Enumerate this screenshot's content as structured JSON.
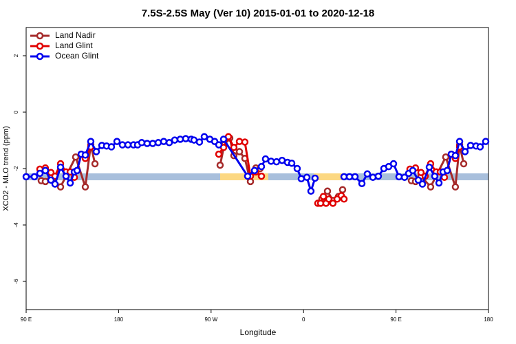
{
  "chart_data": {
    "type": "line",
    "title": "7.5S-2.5S May (Ver 10)   2015-01-01 to 2020-12-18",
    "xlabel": "Longitude",
    "ylabel": "XCO2 - MLO trend (ppm)",
    "xlim": [
      90,
      540
    ],
    "ylim": [
      -7,
      3
    ],
    "xticks": [
      {
        "value": 90,
        "label": "90 E"
      },
      180,
      {
        "value": 270,
        "label": "90 W"
      },
      {
        "value": 360,
        "label": "0"
      },
      {
        "value": 450,
        "label": "90 E"
      },
      {
        "value": 540,
        "label": "180"
      }
    ],
    "yticks": [
      -6,
      -4,
      -2,
      0,
      2
    ],
    "legend": "upper left",
    "series": [
      {
        "name": "Land Nadir",
        "color": "#a52a2a",
        "x": [
          104.7,
          108.7,
          114.1,
          123.5,
          138.2,
          147.6,
          152.9,
          157.0,
          200,
          278.8,
          282.8,
          288.2,
          292.2,
          297.6,
          302.9,
          308.3,
          313.6,
          317.7,
          350,
          377.9,
          383.3,
          388.6,
          394.0,
          398.0,
          450,
          465.0,
          469.0,
          474.3,
          483.7,
          498.4,
          507.8,
          511.9,
          515.9
        ],
        "values": [
          -2.43,
          -2.46,
          -2.27,
          -2.65,
          -1.59,
          -2.65,
          -1.16,
          -1.83,
          null,
          -1.88,
          -1.16,
          -0.92,
          -1.54,
          -1.4,
          -1.64,
          -2.46,
          -1.98,
          -2.0,
          null,
          -3.08,
          -2.8,
          -3.13,
          -2.99,
          -2.75,
          null,
          -2.43,
          -2.46,
          -2.27,
          -2.65,
          -1.59,
          -2.65,
          -1.16,
          -1.83
        ]
      },
      {
        "name": "Land Glint",
        "color": "#e00000",
        "x": [
          103.4,
          108.7,
          114.1,
          118.1,
          123.5,
          128.8,
          132.9,
          136.9,
          139.6,
          143.6,
          147.6,
          152.9,
          200,
          277.5,
          282.2,
          286.9,
          292.2,
          297.6,
          302.9,
          308.3,
          313.6,
          319.0,
          350,
          373.9,
          376.6,
          379.3,
          381.9,
          384.6,
          388.6,
          392.7,
          396.7,
          399.4,
          450,
          463.6,
          469.0,
          474.3,
          478.4,
          483.7,
          489.1,
          493.1,
          497.1,
          499.8,
          503.8,
          507.8,
          511.9
        ],
        "values": [
          -2.02,
          -1.98,
          -2.14,
          -2.27,
          -1.83,
          -2.12,
          -2.12,
          -2.31,
          -2.07,
          -1.49,
          -1.64,
          -1.23,
          null,
          -1.49,
          -1.25,
          -0.87,
          -1.25,
          -1.04,
          -1.06,
          -2.27,
          -2.12,
          -2.27,
          null,
          -3.23,
          -3.23,
          -2.99,
          -3.23,
          -3.08,
          -3.23,
          -3.08,
          -2.96,
          -3.08,
          null,
          -2.02,
          -1.98,
          -2.14,
          -2.27,
          -1.83,
          -2.12,
          -2.12,
          -2.31,
          -2.07,
          -1.49,
          -1.64,
          -1.23
        ]
      },
      {
        "name": "Ocean Glint",
        "color": "#0000ee",
        "x": [
          90,
          98.0,
          103.4,
          108.7,
          114.1,
          118.1,
          123.5,
          128.8,
          132.9,
          136.9,
          139.6,
          143.6,
          147.6,
          152.9,
          158.3,
          163.7,
          168.3,
          173.0,
          178.4,
          183.7,
          189.1,
          194.5,
          198.5,
          202.5,
          207.8,
          213.2,
          218.6,
          223.9,
          229.3,
          234.6,
          240.0,
          245.3,
          250.7,
          253.4,
          258.7,
          263.4,
          268.8,
          273.5,
          277.5,
          282.2,
          305.6,
          312.3,
          319.0,
          323.0,
          328.4,
          333.7,
          339.1,
          344.4,
          348.5,
          353.8,
          357.8,
          363.2,
          367.2,
          371.2,
          385,
          399.4,
          404.7,
          410.1,
          416.8,
          422.1,
          427.5,
          432.8,
          438.2,
          442.9,
          447.6,
          452.9,
          458.3,
          462.3,
          466.3,
          471.7,
          475.7,
          482.4,
          487.7,
          491.8,
          495.8,
          499.8,
          503.8,
          507.8,
          511.9,
          517.2,
          522.6,
          527.9,
          531.9,
          537.3
        ],
        "values": [
          -2.29,
          -2.29,
          -2.17,
          -2.07,
          -2.41,
          -2.55,
          -1.95,
          -2.27,
          -2.51,
          -2.12,
          -2.07,
          -1.49,
          -1.52,
          -1.04,
          -1.4,
          -1.18,
          -1.2,
          -1.23,
          -1.04,
          -1.16,
          -1.16,
          -1.16,
          -1.16,
          -1.08,
          -1.11,
          -1.11,
          -1.08,
          -1.04,
          -1.08,
          -0.99,
          -0.96,
          -0.94,
          -0.96,
          -0.99,
          -1.06,
          -0.87,
          -0.96,
          -1.04,
          -1.16,
          -0.96,
          -2.27,
          -2.07,
          -1.93,
          -1.66,
          -1.74,
          -1.76,
          -1.71,
          -1.78,
          -1.81,
          -2.0,
          -2.36,
          -2.31,
          -2.8,
          -2.34,
          null,
          -2.29,
          -2.29,
          -2.29,
          -2.53,
          -2.19,
          -2.31,
          -2.27,
          -2.0,
          -1.93,
          -1.83,
          -2.29,
          -2.31,
          -2.17,
          -2.07,
          -2.41,
          -2.55,
          -1.95,
          -2.27,
          -2.51,
          -2.12,
          -2.07,
          -1.49,
          -1.54,
          -1.04,
          -1.4,
          -1.18,
          -1.2,
          -1.23,
          -1.04
        ]
      }
    ]
  }
}
